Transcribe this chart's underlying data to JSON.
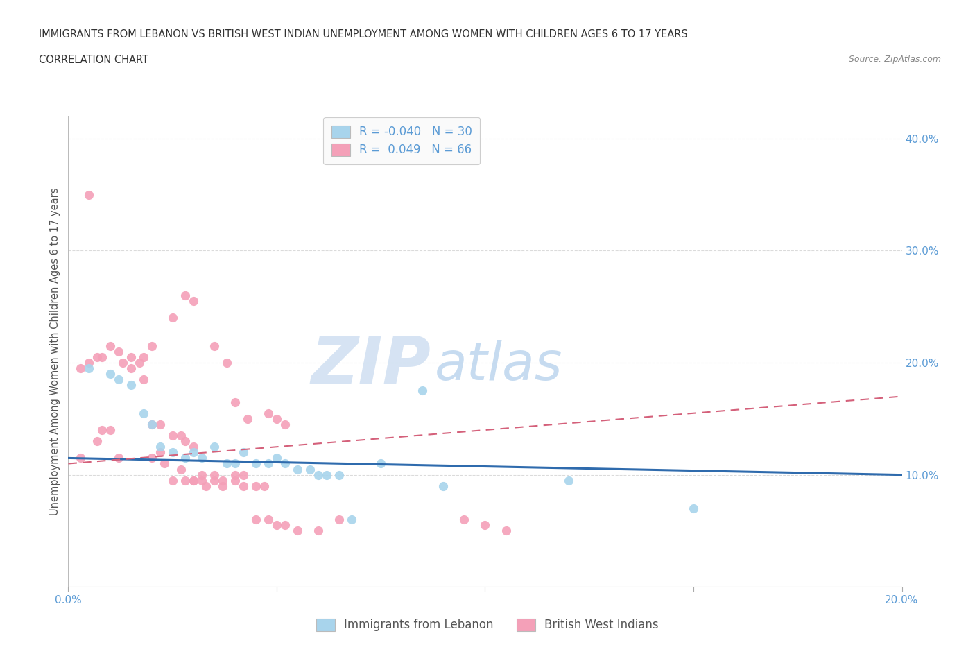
{
  "title_line1": "IMMIGRANTS FROM LEBANON VS BRITISH WEST INDIAN UNEMPLOYMENT AMONG WOMEN WITH CHILDREN AGES 6 TO 17 YEARS",
  "title_line2": "CORRELATION CHART",
  "source_text": "Source: ZipAtlas.com",
  "ylabel": "Unemployment Among Women with Children Ages 6 to 17 years",
  "watermark_zip": "ZIP",
  "watermark_atlas": "atlas",
  "legend_label1": "Immigrants from Lebanon",
  "legend_label2": "British West Indians",
  "R1": -0.04,
  "N1": 30,
  "R2": 0.049,
  "N2": 66,
  "xlim": [
    0.0,
    0.2
  ],
  "ylim": [
    0.0,
    0.42
  ],
  "xticks": [
    0.0,
    0.05,
    0.1,
    0.15,
    0.2
  ],
  "ytick_positions_right": [
    0.1,
    0.2,
    0.3,
    0.4
  ],
  "ytick_labels_right": [
    "10.0%",
    "20.0%",
    "30.0%",
    "40.0%"
  ],
  "color_blue": "#A8D4EC",
  "color_pink": "#F4A0B8",
  "line_color_blue": "#2F6BAD",
  "line_color_pink": "#D4607A",
  "background_color": "#FFFFFF",
  "axis_color": "#5B9BD5",
  "grid_color": "#CCCCCC",
  "blue_points_x": [
    0.005,
    0.01,
    0.012,
    0.015,
    0.018,
    0.02,
    0.022,
    0.025,
    0.028,
    0.03,
    0.032,
    0.035,
    0.038,
    0.04,
    0.042,
    0.045,
    0.048,
    0.05,
    0.052,
    0.055,
    0.058,
    0.06,
    0.062,
    0.065,
    0.068,
    0.075,
    0.085,
    0.09,
    0.12,
    0.15
  ],
  "blue_points_y": [
    0.195,
    0.19,
    0.185,
    0.18,
    0.155,
    0.145,
    0.125,
    0.12,
    0.115,
    0.12,
    0.115,
    0.125,
    0.11,
    0.11,
    0.12,
    0.11,
    0.11,
    0.115,
    0.11,
    0.105,
    0.105,
    0.1,
    0.1,
    0.1,
    0.06,
    0.11,
    0.175,
    0.09,
    0.095,
    0.07
  ],
  "pink_points_x": [
    0.003,
    0.005,
    0.007,
    0.008,
    0.01,
    0.012,
    0.013,
    0.015,
    0.017,
    0.018,
    0.02,
    0.02,
    0.022,
    0.023,
    0.025,
    0.025,
    0.027,
    0.028,
    0.028,
    0.03,
    0.03,
    0.032,
    0.033,
    0.035,
    0.035,
    0.037,
    0.038,
    0.04,
    0.04,
    0.042,
    0.043,
    0.045,
    0.047,
    0.048,
    0.05,
    0.052,
    0.003,
    0.005,
    0.007,
    0.008,
    0.01,
    0.012,
    0.015,
    0.018,
    0.02,
    0.022,
    0.025,
    0.027,
    0.028,
    0.03,
    0.03,
    0.032,
    0.035,
    0.037,
    0.04,
    0.042,
    0.045,
    0.048,
    0.05,
    0.052,
    0.055,
    0.06,
    0.065,
    0.095,
    0.1,
    0.105
  ],
  "pink_points_y": [
    0.195,
    0.2,
    0.205,
    0.205,
    0.215,
    0.21,
    0.2,
    0.205,
    0.2,
    0.205,
    0.215,
    0.115,
    0.12,
    0.11,
    0.24,
    0.095,
    0.105,
    0.095,
    0.26,
    0.095,
    0.255,
    0.095,
    0.09,
    0.095,
    0.215,
    0.09,
    0.2,
    0.1,
    0.165,
    0.1,
    0.15,
    0.09,
    0.09,
    0.155,
    0.15,
    0.145,
    0.115,
    0.35,
    0.13,
    0.14,
    0.14,
    0.115,
    0.195,
    0.185,
    0.145,
    0.145,
    0.135,
    0.135,
    0.13,
    0.125,
    0.095,
    0.1,
    0.1,
    0.095,
    0.095,
    0.09,
    0.06,
    0.06,
    0.055,
    0.055,
    0.05,
    0.05,
    0.06,
    0.06,
    0.055,
    0.05
  ]
}
